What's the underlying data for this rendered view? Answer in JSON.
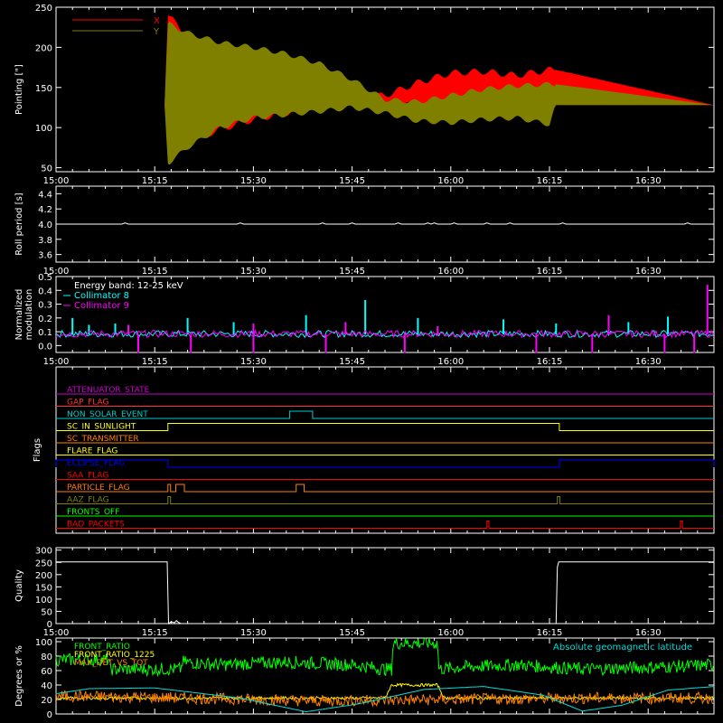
{
  "time_axis": {
    "range": [
      "15:00",
      "16:40"
    ],
    "ticks": [
      "15:00",
      "15:15",
      "15:30",
      "15:45",
      "16:00",
      "16:15",
      "16:30"
    ],
    "tick_values_min": [
      0,
      15,
      30,
      45,
      60,
      75,
      90
    ]
  },
  "chart_data": [
    {
      "type": "area",
      "ylabel": "Pointing [\"]",
      "ylim": [
        45,
        250
      ],
      "yticks": [
        50,
        100,
        150,
        200,
        250
      ],
      "legend": {
        "placement": "top-left"
      },
      "series": [
        {
          "name": "X",
          "color": "#ff0000",
          "x": [
            0,
            16.5,
            17,
            20,
            25,
            30,
            35,
            40,
            45,
            50,
            55,
            60,
            65,
            70,
            75,
            76,
            100
          ],
          "upper": [
            128,
            128,
            240,
            215,
            200,
            182,
            166,
            152,
            138,
            140,
            156,
            168,
            170,
            165,
            172,
            172,
            128
          ],
          "lower": [
            128,
            128,
            70,
            82,
            98,
            110,
            118,
            124,
            128,
            128,
            128,
            126,
            127,
            128,
            130,
            128,
            128
          ]
        },
        {
          "name": "Y",
          "color": "#808000",
          "x": [
            0,
            16.5,
            17,
            20,
            25,
            30,
            35,
            40,
            45,
            50,
            55,
            60,
            65,
            70,
            75,
            76,
            100
          ],
          "upper": [
            128,
            128,
            230,
            218,
            206,
            200,
            192,
            180,
            160,
            135,
            132,
            140,
            148,
            152,
            154,
            154,
            128
          ],
          "lower": [
            128,
            128,
            55,
            75,
            100,
            112,
            116,
            120,
            125,
            118,
            108,
            106,
            110,
            112,
            104,
            128,
            128
          ]
        }
      ]
    },
    {
      "type": "line",
      "ylabel": "Roll period [s]",
      "ylim": [
        3.5,
        4.5
      ],
      "yticks": [
        "3.6",
        "3.8",
        "4.0",
        "4.2",
        "4.4"
      ],
      "series": [
        {
          "name": "",
          "color": "#ffffff",
          "x": [
            0,
            100
          ],
          "y": [
            4.0,
            4.0
          ]
        }
      ]
    },
    {
      "type": "bar",
      "ylabel_lines": [
        "Normalized",
        "modulation"
      ],
      "ylim": [
        -0.05,
        0.5
      ],
      "yticks": [
        "0.0",
        "0.1",
        "0.2",
        "0.3",
        "0.4",
        "0.5"
      ],
      "annotation": "Energy band: 12-25 keV",
      "legend": {
        "placement": "top-left"
      },
      "series": [
        {
          "name": "Collimator 8",
          "color": "#00ffff",
          "baseline": 0.08,
          "spikes": [
            {
              "x": 2.5,
              "y": 0.2
            },
            {
              "x": 5,
              "y": 0.15
            },
            {
              "x": 9,
              "y": 0.16
            },
            {
              "x": 20,
              "y": 0.2
            },
            {
              "x": 27,
              "y": 0.17
            },
            {
              "x": 38,
              "y": 0.22
            },
            {
              "x": 47,
              "y": 0.33
            },
            {
              "x": 55,
              "y": 0.2
            },
            {
              "x": 68,
              "y": 0.19
            },
            {
              "x": 76,
              "y": 0.16
            },
            {
              "x": 87,
              "y": 0.17
            },
            {
              "x": 93,
              "y": 0.21
            }
          ]
        },
        {
          "name": "Collimator 9",
          "color": "#ff00ff",
          "baseline": 0.08,
          "spikes": [
            {
              "x": 11,
              "y": 0.15
            },
            {
              "x": 30,
              "y": 0.16
            },
            {
              "x": 44,
              "y": 0.17
            },
            {
              "x": 58,
              "y": 0.14
            },
            {
              "x": 84,
              "y": 0.22
            },
            {
              "x": 99,
              "y": 0.44
            }
          ],
          "dips": [
            {
              "x": 12.5,
              "y": 0.0
            },
            {
              "x": 20.5,
              "y": 0.0
            },
            {
              "x": 30,
              "y": 0.0
            },
            {
              "x": 41,
              "y": 0.0
            },
            {
              "x": 53,
              "y": 0.0
            },
            {
              "x": 73,
              "y": 0.0
            },
            {
              "x": 81.5,
              "y": 0.0
            },
            {
              "x": 92.5,
              "y": 0.0
            },
            {
              "x": 97,
              "y": 0.0
            }
          ]
        }
      ]
    },
    {
      "type": "line",
      "ylabel": "Flags",
      "flags": [
        {
          "name": "ATTENUATOR_STATE",
          "color": "#cc00cc",
          "on": []
        },
        {
          "name": "GAP_FLAG",
          "color": "#ff3333",
          "on": []
        },
        {
          "name": "NON_SOLAR_EVENT",
          "color": "#00cccc",
          "on": [
            [
              35.5,
              39
            ]
          ]
        },
        {
          "name": "SC_IN_SUNLIGHT",
          "color": "#ffff00",
          "on": [
            [
              17,
              76.5
            ]
          ]
        },
        {
          "name": "SC_TRANSMITTER",
          "color": "#ff7f00",
          "on": []
        },
        {
          "name": "FLARE_FLAG",
          "color": "#ffff00",
          "on": []
        },
        {
          "name": "ECLIPSE_FLAG",
          "color": "#0000ff",
          "on": [
            [
              0,
              17
            ],
            [
              76.5,
              100
            ]
          ]
        },
        {
          "name": "SAA_FLAG",
          "color": "#ff0000",
          "on": []
        },
        {
          "name": "PARTICLE_FLAG",
          "color": "#ff7f00",
          "on": [
            [
              17,
              17.4
            ],
            [
              18.2,
              19.5
            ],
            [
              36.5,
              37.7
            ]
          ]
        },
        {
          "name": "AAZ_FLAG",
          "color": "#808000",
          "on": [
            [
              17,
              17.4
            ],
            [
              76.2,
              76.6
            ]
          ]
        },
        {
          "name": "FRONTS_OFF",
          "color": "#00ff00",
          "on": []
        },
        {
          "name": "BAD_PACKETS",
          "color": "#ff0000",
          "on": [
            [
              65.5,
              65.8
            ],
            [
              94.9,
              95.2
            ]
          ]
        }
      ]
    },
    {
      "type": "line",
      "ylabel": "Quality",
      "ylim": [
        0,
        310
      ],
      "yticks": [
        0,
        50,
        100,
        150,
        200,
        250,
        300
      ],
      "series": [
        {
          "name": "",
          "color": "#ffffff",
          "x": [
            0,
            16.9,
            17.1,
            17.5,
            18,
            18.3,
            18.6,
            19,
            76,
            76.2,
            76.4,
            100
          ],
          "y": [
            252,
            252,
            0,
            8,
            3,
            12,
            5,
            0,
            0,
            230,
            252,
            252
          ]
        }
      ]
    },
    {
      "type": "line",
      "ylabel": "Degrees or %",
      "ylim": [
        0,
        105
      ],
      "yticks": [
        0,
        20,
        40,
        60,
        80,
        100
      ],
      "annotation": "Absolute geomagnetic latitude",
      "annotation_color": "#00dddd",
      "legend": {
        "placement": "top-left"
      },
      "series": [
        {
          "name": "FRONT_RATIO",
          "color": "#00ff00",
          "x": [
            0,
            8,
            8.2,
            19,
            19.2,
            25,
            35,
            40,
            45,
            50,
            51,
            51.2,
            58,
            58.2,
            62,
            70,
            80,
            88,
            95,
            100
          ],
          "y": [
            75,
            75,
            62,
            62,
            72,
            68,
            72,
            70,
            68,
            62,
            62,
            98,
            98,
            62,
            65,
            68,
            62,
            64,
            66,
            68
          ],
          "noise": 9
        },
        {
          "name": "FRONT_RATIO_1225",
          "color": "#ffff00",
          "x": [
            0,
            50,
            51,
            58,
            59,
            100
          ],
          "y": [
            22,
            22,
            40,
            40,
            22,
            22
          ],
          "noise": 2
        },
        {
          "name": "MAX_DET_VS_TOT",
          "color": "#ff8000",
          "x": [
            0,
            20,
            40,
            60,
            80,
            100
          ],
          "y": [
            25,
            22,
            18,
            20,
            22,
            22
          ],
          "noise": 8
        },
        {
          "name": "",
          "color": "#00dddd",
          "x": [
            0,
            5,
            15,
            28,
            38,
            46,
            56,
            65,
            74,
            80,
            86,
            93,
            100
          ],
          "y": [
            28,
            35,
            36,
            22,
            3,
            14,
            34,
            38,
            26,
            4,
            12,
            33,
            38
          ],
          "noise": 0
        }
      ]
    }
  ]
}
